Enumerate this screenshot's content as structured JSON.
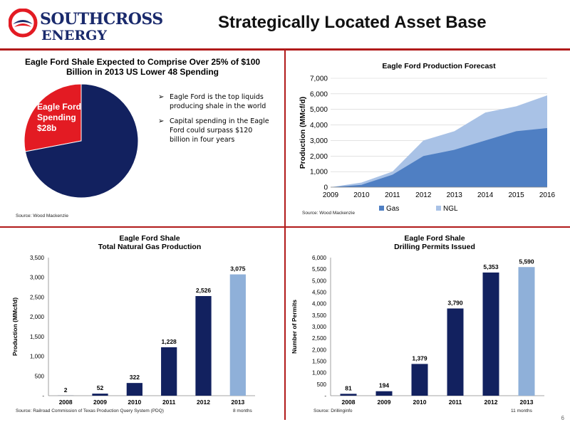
{
  "header": {
    "logo_line1": "SOUTHCROSS",
    "logo_line2": "ENERGY",
    "title": "Strategically Located Asset Base",
    "page_number": "6"
  },
  "colors": {
    "navy": "#12215f",
    "light_blue": "#8fb0d9",
    "red": "#e31b23",
    "area_gas": "#4f7fc3",
    "area_ngl": "#a9c2e6",
    "divider": "#b11a1a"
  },
  "pie_panel": {
    "title_line1": "Eagle Ford Shale Expected to Comprise Over 25% of $100",
    "title_line2": "Billion in 2013 US Lower 48 Spending",
    "slice_label_lines": [
      "Eagle Ford",
      "Spending",
      "$28b"
    ],
    "bullets": [
      "Eagle Ford is the top liquids producing shale in the world",
      "Capital spending in the Eagle Ford could surpass $120 billion in four years"
    ],
    "source": "Source: Wood Mackenzie"
  },
  "production_panel": {
    "title": "Eagle Ford Production Forecast",
    "source": "Source: Wood Mackenzie"
  },
  "gas_panel": {
    "title_line1": "Eagle Ford Shale",
    "title_line2": "Total Natural Gas Production",
    "source": "Source: Railroad Commission of Texas Production Query System (PDQ)",
    "note": "8 months"
  },
  "permits_panel": {
    "title_line1": "Eagle Ford Shale",
    "title_line2": "Drilling Permits Issued",
    "source": "Source: Drillinginfo",
    "note": "11 months"
  },
  "chart_data": [
    {
      "type": "pie",
      "slices": [
        {
          "name": "Eagle Ford Spending",
          "value": 28
        },
        {
          "name": "",
          "value": 72
        }
      ]
    },
    {
      "type": "area",
      "title": "Eagle Ford Production Forecast",
      "xlabel": "",
      "ylabel": "Production (MMcf/d)",
      "x": [
        2009,
        2010,
        2011,
        2012,
        2013,
        2014,
        2015,
        2016
      ],
      "ylim": [
        0,
        7000
      ],
      "yticks": [
        "0",
        "1,000",
        "2,000",
        "3,000",
        "4,000",
        "5,000",
        "6,000",
        "7,000"
      ],
      "stacked": true,
      "series": [
        {
          "name": "Gas",
          "values": [
            0,
            150,
            800,
            2000,
            2400,
            3000,
            3600,
            3800
          ]
        },
        {
          "name": "NGL",
          "values": [
            0,
            150,
            200,
            1000,
            1200,
            1800,
            1600,
            2100
          ]
        }
      ],
      "legend": "bottom"
    },
    {
      "type": "bar",
      "title": "Eagle Ford Shale Total Natural Gas Production",
      "xlabel": "",
      "ylabel": "Production (MMcf/d)",
      "categories": [
        "2008",
        "2009",
        "2010",
        "2011",
        "2012",
        "2013"
      ],
      "values": [
        2,
        52,
        322,
        1228,
        2526,
        3075
      ],
      "value_labels": [
        "2",
        "52",
        "322",
        "1,228",
        "2,526",
        "3,075"
      ],
      "ylim": [
        0,
        3500
      ],
      "yticks": [
        "-",
        "500",
        "1,000",
        "1,500",
        "2,000",
        "2,500",
        "3,000",
        "3,500"
      ],
      "highlight_last": true
    },
    {
      "type": "bar",
      "title": "Eagle Ford Shale Drilling Permits Issued",
      "xlabel": "",
      "ylabel": "Number of Permits",
      "categories": [
        "2008",
        "2009",
        "2010",
        "2011",
        "2012",
        "2013"
      ],
      "values": [
        81,
        194,
        1379,
        3790,
        5353,
        5590
      ],
      "value_labels": [
        "81",
        "194",
        "1,379",
        "3,790",
        "5,353",
        "5,590"
      ],
      "ylim": [
        0,
        6000
      ],
      "yticks": [
        "-",
        "500",
        "1,000",
        "1,500",
        "2,000",
        "2,500",
        "3,000",
        "3,500",
        "4,000",
        "4,500",
        "5,000",
        "5,500",
        "6,000"
      ],
      "highlight_last": true
    }
  ]
}
